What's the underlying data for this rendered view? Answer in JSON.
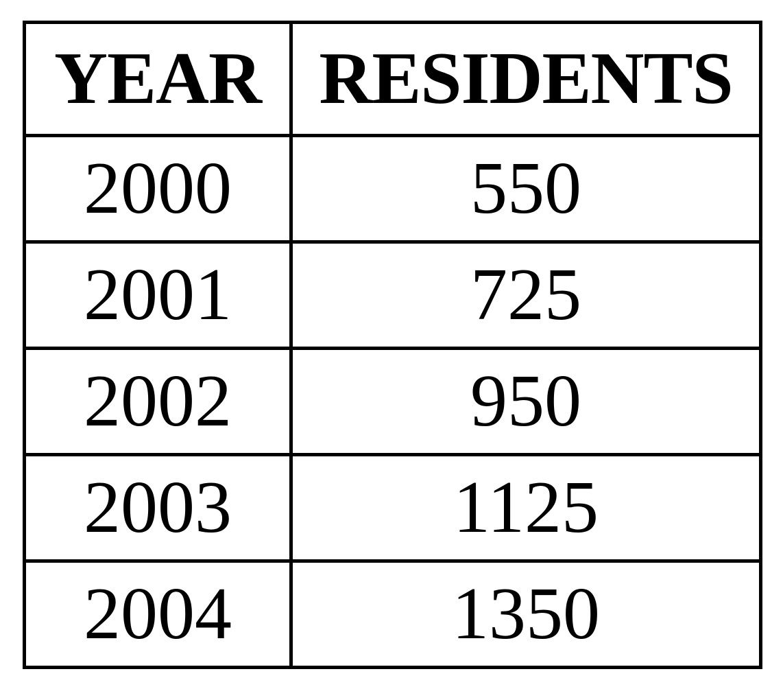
{
  "chart_data": {
    "type": "table",
    "columns": [
      "YEAR",
      "RESIDENTS"
    ],
    "rows": [
      [
        "2000",
        "550"
      ],
      [
        "2001",
        "725"
      ],
      [
        "2002",
        "950"
      ],
      [
        "2003",
        "1125"
      ],
      [
        "2004",
        "1350"
      ]
    ],
    "x": [
      2000,
      2001,
      2002,
      2003,
      2004
    ],
    "values": [
      550,
      725,
      950,
      1125,
      1350
    ]
  }
}
